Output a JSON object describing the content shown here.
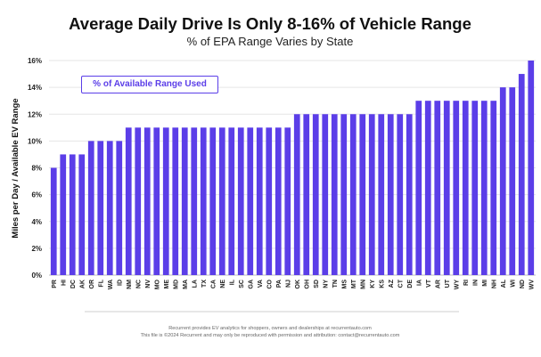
{
  "chart_data": {
    "type": "bar",
    "title": "Average Daily Drive Is Only 8-16% of Vehicle Range",
    "subtitle": "% of EPA Range Varies by State",
    "ylabel": "Miles per Day  /  Available EV Range",
    "xlabel": "",
    "ylim": [
      0,
      16
    ],
    "yticks": [
      "0%",
      "2%",
      "4%",
      "6%",
      "8%",
      "10%",
      "12%",
      "14%",
      "16%"
    ],
    "grid": true,
    "legend": {
      "label": "% of Available Range Used",
      "placement": "top-left"
    },
    "bar_color": "#5b3ee8",
    "categories": [
      "PR",
      "HI",
      "DC",
      "AK",
      "OR",
      "FL",
      "WA",
      "ID",
      "NM",
      "NC",
      "NV",
      "MO",
      "ME",
      "MD",
      "MA",
      "LA",
      "TX",
      "CA",
      "NE",
      "IL",
      "SC",
      "GA",
      "VA",
      "CO",
      "PA",
      "NJ",
      "OK",
      "OH",
      "SD",
      "NY",
      "TN",
      "MS",
      "MT",
      "MN",
      "KY",
      "KS",
      "AZ",
      "CT",
      "DE",
      "IA",
      "VT",
      "AR",
      "UT",
      "WY",
      "RI",
      "IN",
      "MI",
      "NH",
      "AL",
      "WI",
      "ND",
      "WV"
    ],
    "values": [
      8,
      9,
      9,
      9,
      10,
      10,
      10,
      10,
      11,
      11,
      11,
      11,
      11,
      11,
      11,
      11,
      11,
      11,
      11,
      11,
      11,
      11,
      11,
      11,
      11,
      11,
      12,
      12,
      12,
      12,
      12,
      12,
      12,
      12,
      12,
      12,
      12,
      12,
      12,
      13,
      13,
      13,
      13,
      13,
      13,
      13,
      13,
      13,
      14,
      14,
      15,
      16
    ]
  },
  "footer": {
    "line1": "Recurrent provides EV analytics for shoppers, owners and dealerships at recurrentauto.com",
    "line2": "This file is ©2024 Recurrent and may only be reproduced with permission and attribution: contact@recurrentauto.com"
  }
}
